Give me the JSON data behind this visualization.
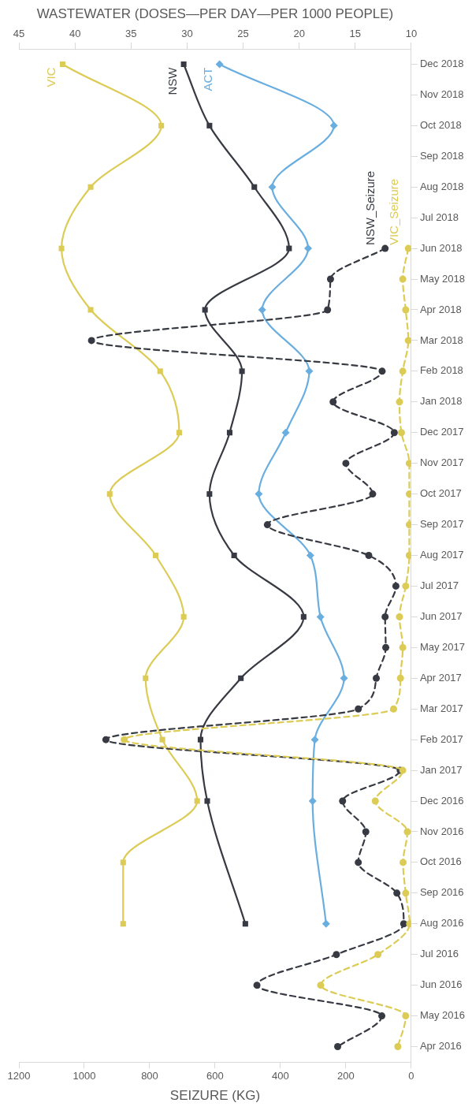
{
  "chart_data": {
    "type": "line",
    "orientation": "horizontal",
    "xlabel": "SEIZURE (KG)",
    "x2label": "WASTEWATER (DOSES—PER DAY—PER 1000 PEOPLE)",
    "categories": [
      "Dec 2018",
      "Nov 2018",
      "Oct 2018",
      "Sep 2018",
      "Aug 2018",
      "Jul 2018",
      "Jun 2018",
      "May 2018",
      "Apr 2018",
      "Mar 2018",
      "Feb 2018",
      "Jan 2018",
      "Dec 2017",
      "Nov 2017",
      "Oct 2017",
      "Sep 2017",
      "Aug 2017",
      "Jul 2017",
      "Jun 2017",
      "May 2017",
      "Apr 2017",
      "Mar 2017",
      "Feb 2017",
      "Jan 2017",
      "Dec 2016",
      "Nov 2016",
      "Oct 2016",
      "Sep 2016",
      "Aug 2016",
      "Jul 2016",
      "Jun 2016",
      "May 2016",
      "Apr 2016"
    ],
    "xlim": [
      1200,
      0
    ],
    "xticks": [
      0,
      200,
      400,
      600,
      800,
      1000,
      1200
    ],
    "x2lim": [
      45,
      10
    ],
    "x2ticks": [
      10,
      15,
      20,
      25,
      30,
      35,
      40,
      45
    ],
    "grid": false,
    "legend": false,
    "series": [
      {
        "name": "VIC_Seizure",
        "color": "#dccb55",
        "marker": "circle",
        "line_style": "dashed",
        "values": [
          null,
          null,
          null,
          null,
          null,
          null,
          9,
          26,
          17,
          9,
          26,
          36,
          30,
          6,
          6,
          6,
          6,
          17,
          36,
          26,
          33,
          54,
          878,
          26,
          110,
          12,
          25,
          17,
          5,
          102,
          277,
          17,
          41
        ]
      },
      {
        "name": "NSW_Seizure",
        "color": "#373a42",
        "marker": "circle",
        "line_style": "dashed",
        "values": [
          null,
          null,
          null,
          null,
          null,
          null,
          80,
          247,
          256,
          978,
          89,
          239,
          52,
          200,
          118,
          440,
          130,
          47,
          80,
          78,
          107,
          162,
          934,
          34,
          210,
          139,
          162,
          44,
          23,
          229,
          472,
          90,
          225
        ]
      },
      {
        "name": "NSW",
        "color": "#373a42",
        "marker": "square",
        "line_style": "solid",
        "axis": "x2",
        "values": [
          30.3,
          null,
          28.0,
          null,
          24.0,
          null,
          20.9,
          null,
          28.4,
          null,
          25.1,
          null,
          26.2,
          null,
          28.0,
          null,
          25.8,
          null,
          19.6,
          null,
          25.2,
          null,
          28.8,
          null,
          28.2,
          null,
          null,
          null,
          24.8,
          null,
          null,
          null,
          null
        ]
      },
      {
        "name": "ACT",
        "color": "#6aaee0",
        "marker": "diamond",
        "line_style": "solid",
        "axis": "x2",
        "values": [
          27.1,
          null,
          16.9,
          null,
          22.4,
          null,
          19.2,
          null,
          23.3,
          null,
          19.1,
          null,
          21.2,
          null,
          23.6,
          null,
          19.0,
          null,
          18.1,
          null,
          16.0,
          null,
          18.6,
          null,
          18.8,
          null,
          null,
          null,
          17.6,
          null,
          null,
          null,
          null
        ]
      },
      {
        "name": "VIC",
        "color": "#dccb55",
        "marker": "square",
        "line_style": "solid",
        "axis": "x2",
        "values": [
          41.1,
          null,
          32.3,
          null,
          38.6,
          null,
          41.2,
          null,
          38.6,
          null,
          32.4,
          null,
          30.7,
          null,
          36.9,
          null,
          32.8,
          null,
          30.3,
          null,
          33.7,
          null,
          32.2,
          null,
          29.1,
          null,
          35.7,
          null,
          35.7,
          null,
          null,
          null,
          null
        ]
      }
    ]
  }
}
